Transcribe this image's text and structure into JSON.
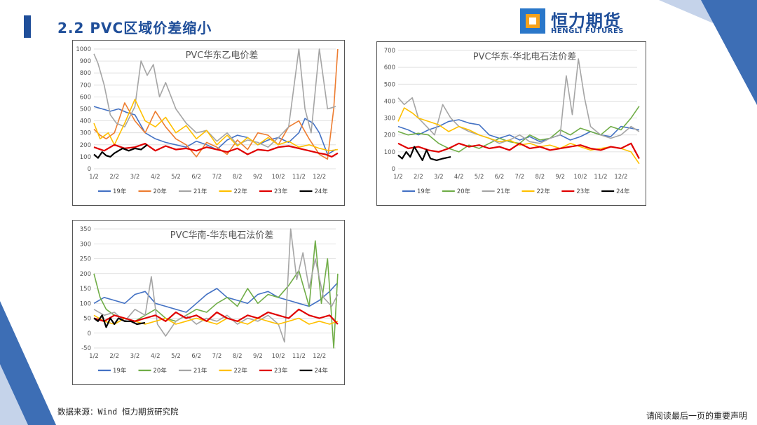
{
  "header": {
    "title": "2.2 PVC区域价差缩小",
    "logo_cn": "恒力期货",
    "logo_en": "HENGLI FUTURES"
  },
  "footer": {
    "source": "数据来源：Wind  恒力期货研究院",
    "disclaimer": "请阅读最后一页的重要声明"
  },
  "colors": {
    "19年": "#4472c4",
    "20年": "#ed7d31",
    "21年": "#a5a5a5",
    "22年": "#ffc000",
    "23年": "#e00000",
    "24年": "#000000",
    "brand_blue": "#1f4e99",
    "brand_orange": "#f6a21b"
  },
  "chart_data": [
    {
      "type": "line",
      "title": "PVC华东乙电价差",
      "xticks": [
        "1/2",
        "2/2",
        "3/2",
        "4/2",
        "5/2",
        "6/2",
        "7/2",
        "8/2",
        "9/2",
        "10/2",
        "11/2",
        "12/2"
      ],
      "ylim": [
        0,
        1000
      ],
      "yticks": [
        0,
        100,
        200,
        300,
        400,
        500,
        600,
        700,
        800,
        900,
        1000
      ],
      "legend": [
        "19年",
        "20年",
        "21年",
        "22年",
        "23年",
        "24年"
      ],
      "legend_position": "bottom",
      "series": [
        {
          "name": "19年",
          "color": "#4472c4",
          "x": [
            0,
            0.4,
            0.8,
            1.2,
            1.6,
            2,
            2.5,
            3,
            3.5,
            4,
            4.5,
            5,
            5.5,
            6,
            6.5,
            7,
            7.5,
            8,
            8.5,
            9,
            9.5,
            10,
            10.3,
            10.7,
            11,
            11.4,
            11.8
          ],
          "y": [
            520,
            500,
            480,
            500,
            470,
            450,
            300,
            250,
            220,
            200,
            180,
            230,
            200,
            160,
            240,
            280,
            260,
            200,
            240,
            260,
            220,
            300,
            420,
            380,
            300,
            120,
            160
          ]
        },
        {
          "name": "20年",
          "color": "#ed7d31",
          "x": [
            0,
            0.3,
            0.6,
            1,
            1.5,
            2,
            2.5,
            3,
            3.5,
            4,
            4.5,
            5,
            5.5,
            6,
            6.5,
            7,
            7.5,
            8,
            8.5,
            9,
            9.5,
            10,
            10.5,
            11,
            11.4,
            11.7,
            11.9
          ],
          "y": [
            330,
            280,
            250,
            300,
            550,
            400,
            300,
            480,
            350,
            250,
            200,
            100,
            220,
            180,
            120,
            240,
            160,
            300,
            280,
            200,
            350,
            400,
            250,
            120,
            80,
            500,
            1000
          ]
        },
        {
          "name": "21年",
          "color": "#a5a5a5",
          "x": [
            0,
            0.2,
            0.5,
            0.8,
            1.1,
            1.5,
            2,
            2.3,
            2.6,
            2.9,
            3.2,
            3.5,
            4,
            4.5,
            5,
            5.5,
            6,
            6.5,
            7,
            7.5,
            8,
            8.5,
            9,
            9.5,
            10,
            10.3,
            10.6,
            11,
            11.4,
            11.8
          ],
          "y": [
            960,
            880,
            700,
            450,
            380,
            350,
            520,
            900,
            780,
            870,
            600,
            720,
            500,
            380,
            300,
            320,
            230,
            300,
            200,
            240,
            220,
            180,
            260,
            350,
            1000,
            500,
            300,
            1000,
            500,
            520
          ]
        },
        {
          "name": "22年",
          "color": "#ffc000",
          "x": [
            0,
            0.3,
            0.7,
            1,
            1.5,
            2,
            2.5,
            3,
            3.5,
            4,
            4.5,
            5,
            5.5,
            6,
            6.5,
            7,
            7.5,
            8,
            8.5,
            9,
            9.5,
            10,
            10.5,
            11,
            11.5,
            11.9
          ],
          "y": [
            380,
            250,
            300,
            200,
            380,
            580,
            400,
            350,
            430,
            300,
            360,
            250,
            320,
            200,
            280,
            190,
            260,
            200,
            260,
            200,
            230,
            180,
            200,
            170,
            150,
            160
          ]
        },
        {
          "name": "23年",
          "color": "#e00000",
          "x": [
            0,
            0.5,
            1,
            1.5,
            2,
            2.5,
            3,
            3.5,
            4,
            4.5,
            5,
            5.5,
            6,
            6.5,
            7,
            7.5,
            8,
            8.5,
            9,
            9.5,
            10,
            10.5,
            11,
            11.3,
            11.6,
            11.9
          ],
          "y": [
            180,
            150,
            200,
            170,
            180,
            210,
            150,
            190,
            160,
            170,
            150,
            180,
            160,
            140,
            170,
            120,
            160,
            150,
            180,
            190,
            170,
            150,
            130,
            120,
            100,
            130
          ]
        },
        {
          "name": "24年",
          "color": "#000000",
          "x": [
            0,
            0.2,
            0.4,
            0.6,
            0.8,
            1,
            1.2,
            1.4,
            1.7,
            2,
            2.3,
            2.6
          ],
          "y": [
            120,
            90,
            140,
            110,
            100,
            130,
            150,
            170,
            150,
            170,
            160,
            200
          ]
        }
      ]
    },
    {
      "type": "line",
      "title": "PVC华东-华北电石法价差",
      "xticks": [
        "1/2",
        "2/2",
        "3/2",
        "4/2",
        "5/2",
        "6/2",
        "7/2",
        "8/2",
        "9/2",
        "10/2",
        "11/2",
        "12/2"
      ],
      "ylim": [
        0,
        700
      ],
      "yticks": [
        0,
        100,
        200,
        300,
        400,
        500,
        600,
        700
      ],
      "legend": [
        "19年",
        "20年",
        "21年",
        "22年",
        "23年",
        "24年"
      ],
      "legend_position": "bottom",
      "series": [
        {
          "name": "19年",
          "color": "#4472c4",
          "x": [
            0,
            0.5,
            1,
            1.5,
            2,
            2.5,
            3,
            3.5,
            4,
            4.5,
            5,
            5.5,
            6,
            6.5,
            7,
            7.5,
            8,
            8.5,
            9,
            9.5,
            10,
            10.5,
            11,
            11.5,
            11.9
          ],
          "y": [
            250,
            230,
            200,
            230,
            250,
            280,
            290,
            270,
            260,
            200,
            180,
            200,
            170,
            190,
            160,
            180,
            200,
            170,
            190,
            220,
            200,
            190,
            250,
            240,
            230
          ]
        },
        {
          "name": "20年",
          "color": "#70ad47",
          "x": [
            0,
            0.5,
            1,
            1.5,
            2,
            2.5,
            3,
            3.5,
            4,
            4.5,
            5,
            5.5,
            6,
            6.5,
            7,
            7.5,
            8,
            8.5,
            9,
            9.5,
            10,
            10.5,
            11,
            11.5,
            11.9
          ],
          "y": [
            220,
            200,
            210,
            200,
            150,
            120,
            100,
            140,
            120,
            150,
            180,
            160,
            150,
            200,
            170,
            180,
            230,
            200,
            240,
            220,
            200,
            250,
            230,
            300,
            370
          ]
        },
        {
          "name": "21年",
          "color": "#a5a5a5",
          "x": [
            0,
            0.3,
            0.7,
            1,
            1.4,
            1.8,
            2.2,
            2.6,
            3,
            3.5,
            4,
            4.5,
            5,
            5.5,
            6,
            6.5,
            7,
            7.5,
            8,
            8.3,
            8.6,
            8.9,
            9.2,
            9.5,
            10,
            10.5,
            11,
            11.5,
            11.9
          ],
          "y": [
            420,
            380,
            420,
            300,
            250,
            200,
            380,
            300,
            250,
            220,
            200,
            180,
            150,
            170,
            200,
            160,
            150,
            180,
            200,
            550,
            320,
            650,
            420,
            250,
            200,
            180,
            200,
            250,
            220
          ]
        },
        {
          "name": "22年",
          "color": "#ffc000",
          "x": [
            0,
            0.3,
            0.7,
            1,
            1.5,
            2,
            2.5,
            3,
            3.5,
            4,
            4.5,
            5,
            5.5,
            6,
            6.5,
            7,
            7.5,
            8,
            8.5,
            9,
            9.5,
            10,
            10.5,
            11,
            11.5,
            11.9
          ],
          "y": [
            280,
            360,
            330,
            300,
            280,
            260,
            220,
            250,
            230,
            200,
            180,
            160,
            170,
            140,
            150,
            130,
            140,
            120,
            150,
            130,
            110,
            120,
            130,
            120,
            100,
            30
          ]
        },
        {
          "name": "23年",
          "color": "#e00000",
          "x": [
            0,
            0.5,
            1,
            1.5,
            2,
            2.5,
            3,
            3.5,
            4,
            4.5,
            5,
            5.5,
            6,
            6.5,
            7,
            7.5,
            8,
            8.5,
            9,
            9.5,
            10,
            10.5,
            11,
            11.5,
            11.9
          ],
          "y": [
            150,
            120,
            130,
            110,
            100,
            120,
            150,
            130,
            140,
            120,
            130,
            110,
            150,
            120,
            130,
            110,
            120,
            130,
            140,
            120,
            110,
            130,
            120,
            150,
            60
          ]
        },
        {
          "name": "24年",
          "color": "#000000",
          "x": [
            0,
            0.2,
            0.4,
            0.6,
            0.8,
            1,
            1.2,
            1.4,
            1.6,
            1.9,
            2.2,
            2.6
          ],
          "y": [
            80,
            60,
            100,
            70,
            130,
            90,
            50,
            110,
            60,
            50,
            60,
            70
          ]
        }
      ]
    },
    {
      "type": "line",
      "title": "PVC华南-华东电石法价差",
      "xticks": [
        "1/2",
        "2/2",
        "3/2",
        "4/2",
        "5/2",
        "6/2",
        "7/2",
        "8/2",
        "9/2",
        "10/2",
        "11/2",
        "12/2"
      ],
      "ylim": [
        -50,
        350
      ],
      "yticks": [
        -50,
        0,
        50,
        100,
        150,
        200,
        250,
        300,
        350
      ],
      "legend": [
        "19年",
        "20年",
        "21年",
        "22年",
        "23年",
        "24年"
      ],
      "legend_position": "bottom",
      "series": [
        {
          "name": "19年",
          "color": "#4472c4",
          "x": [
            0,
            0.5,
            1,
            1.5,
            2,
            2.5,
            3,
            3.5,
            4,
            4.5,
            5,
            5.5,
            6,
            6.5,
            7,
            7.5,
            8,
            8.5,
            9,
            9.5,
            10,
            10.5,
            11,
            11.5,
            11.9
          ],
          "y": [
            100,
            120,
            110,
            100,
            130,
            140,
            100,
            90,
            80,
            70,
            100,
            130,
            150,
            120,
            110,
            100,
            130,
            140,
            120,
            110,
            100,
            90,
            110,
            140,
            170
          ]
        },
        {
          "name": "20年",
          "color": "#70ad47",
          "x": [
            0,
            0.3,
            0.6,
            1,
            1.5,
            2,
            2.5,
            3,
            3.5,
            4,
            4.5,
            5,
            5.5,
            6,
            6.5,
            7,
            7.5,
            8,
            8.5,
            9,
            9.5,
            10,
            10.5,
            10.8,
            11.1,
            11.4,
            11.7,
            11.9
          ],
          "y": [
            200,
            120,
            80,
            60,
            50,
            40,
            60,
            80,
            50,
            40,
            60,
            80,
            70,
            100,
            120,
            90,
            150,
            100,
            130,
            120,
            160,
            210,
            90,
            310,
            100,
            250,
            -50,
            200
          ]
        },
        {
          "name": "21年",
          "color": "#a5a5a5",
          "x": [
            0,
            0.5,
            1,
            1.5,
            2,
            2.5,
            2.8,
            3.1,
            3.5,
            4,
            4.5,
            5,
            5.5,
            6,
            6.5,
            7,
            7.5,
            8,
            8.5,
            9,
            9.3,
            9.6,
            9.9,
            10.2,
            10.5,
            10.8,
            11.2,
            11.6,
            11.9
          ],
          "y": [
            80,
            60,
            70,
            40,
            80,
            60,
            190,
            30,
            -10,
            40,
            60,
            30,
            50,
            40,
            60,
            30,
            50,
            40,
            60,
            30,
            -30,
            350,
            180,
            270,
            150,
            250,
            120,
            90,
            130
          ]
        },
        {
          "name": "22年",
          "color": "#ffc000",
          "x": [
            0,
            0.5,
            1,
            1.5,
            2,
            2.5,
            3,
            3.5,
            4,
            4.5,
            5,
            5.5,
            6,
            6.5,
            7,
            7.5,
            8,
            8.5,
            9,
            9.5,
            10,
            10.5,
            11,
            11.5,
            11.9
          ],
          "y": [
            60,
            40,
            30,
            50,
            40,
            30,
            40,
            50,
            30,
            40,
            50,
            40,
            30,
            50,
            40,
            30,
            50,
            40,
            30,
            40,
            50,
            30,
            40,
            30,
            40
          ]
        },
        {
          "name": "23年",
          "color": "#e00000",
          "x": [
            0,
            0.5,
            1,
            1.5,
            2,
            2.5,
            3,
            3.5,
            4,
            4.5,
            5,
            5.5,
            6,
            6.5,
            7,
            7.5,
            8,
            8.5,
            9,
            9.5,
            10,
            10.5,
            11,
            11.5,
            11.9
          ],
          "y": [
            50,
            40,
            60,
            50,
            40,
            50,
            60,
            40,
            70,
            50,
            60,
            40,
            70,
            50,
            40,
            60,
            50,
            70,
            60,
            50,
            80,
            60,
            50,
            60,
            30
          ]
        },
        {
          "name": "24年",
          "color": "#000000",
          "x": [
            0,
            0.2,
            0.4,
            0.6,
            0.8,
            1,
            1.2,
            1.5,
            1.8,
            2.1,
            2.5
          ],
          "y": [
            50,
            40,
            60,
            20,
            50,
            30,
            50,
            40,
            40,
            30,
            35
          ]
        }
      ]
    }
  ]
}
